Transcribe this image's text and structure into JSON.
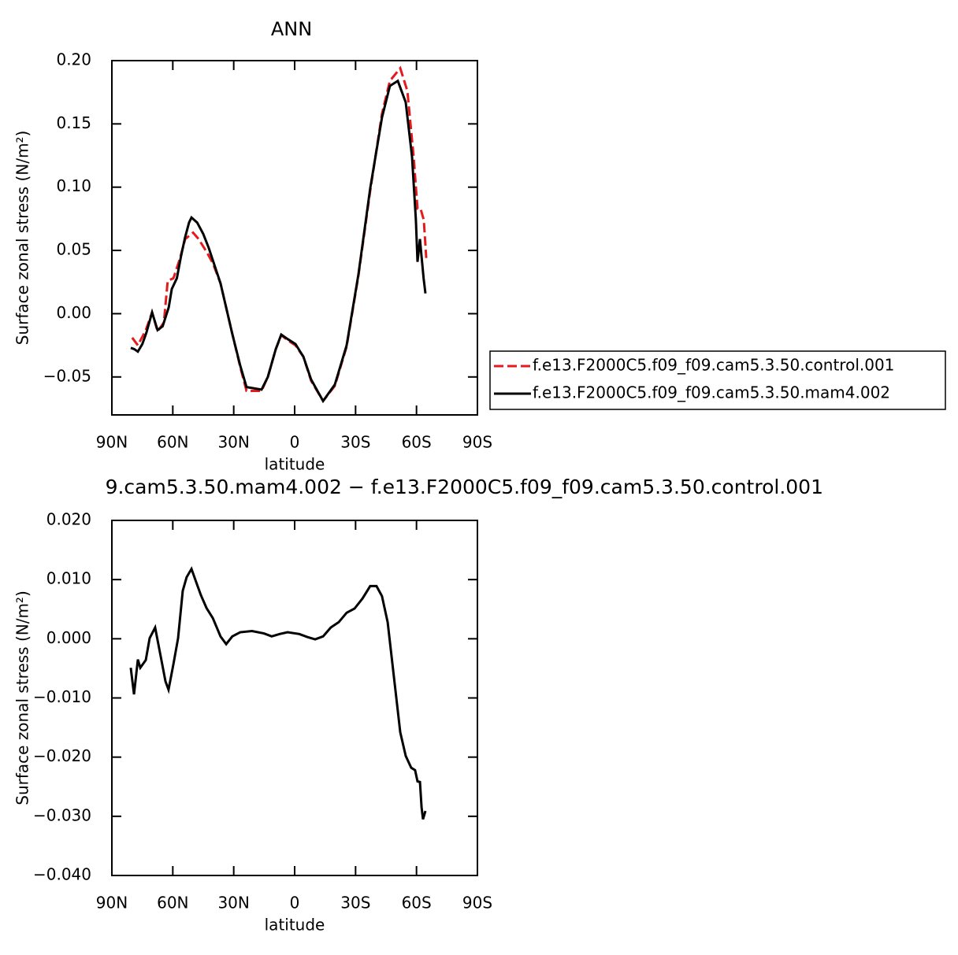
{
  "chart_data": [
    {
      "type": "line",
      "title": "ANN",
      "xlabel": "latitude",
      "ylabel": "Surface zonal stress (N/m²)",
      "xlim": [
        90,
        -90
      ],
      "xticks": [
        {
          "value": 90,
          "label": "90N"
        },
        {
          "value": 60,
          "label": "60N"
        },
        {
          "value": 30,
          "label": "30N"
        },
        0,
        {
          "value": -30,
          "label": "30S"
        },
        {
          "value": -60,
          "label": "60S"
        },
        {
          "value": -90,
          "label": "90S"
        }
      ],
      "ylim": [
        -0.08,
        0.2
      ],
      "yticks": [
        {
          "value": -0.05,
          "label": "−0.05"
        },
        {
          "value": 0,
          "label": "0.00"
        },
        {
          "value": 0.05,
          "label": "0.05"
        },
        {
          "value": 0.1,
          "label": "0.10"
        },
        {
          "value": 0.15,
          "label": "0.15"
        },
        {
          "value": 0.2,
          "label": "0.20"
        }
      ],
      "legend": "right",
      "series": [
        {
          "name": "f.e13.F2000C5.f09_f09.cam5.3.50.control.001",
          "color": "#e41a1c",
          "dashed": true,
          "x": [
            80,
            77.2,
            73.3,
            70.2,
            67.5,
            64.4,
            62.5,
            59.7,
            56.6,
            53.9,
            50,
            47.3,
            43.4,
            40.3,
            36.5,
            30.7,
            26.8,
            23.7,
            16.3,
            13.2,
            9.3,
            6.6,
            3.5,
            -0.4,
            -4.3,
            -8.1,
            -14,
            -19.8,
            -25.6,
            -31.4,
            -37.2,
            -43,
            -46.9,
            -52,
            -55.5,
            -58.6,
            -60.5,
            -62,
            -63.6,
            -64.8
          ],
          "values": [
            -0.019,
            -0.025,
            -0.013,
            0.001,
            -0.014,
            -0.007,
            0.026,
            0.028,
            0.043,
            0.059,
            0.064,
            0.059,
            0.049,
            0.04,
            0.024,
            -0.016,
            -0.042,
            -0.061,
            -0.061,
            -0.05,
            -0.028,
            -0.017,
            -0.021,
            -0.025,
            -0.034,
            -0.053,
            -0.069,
            -0.057,
            -0.026,
            0.03,
            0.097,
            0.158,
            0.184,
            0.194,
            0.176,
            0.124,
            0.083,
            0.083,
            0.074,
            0.044
          ]
        },
        {
          "name": "f.e13.F2000C5.f09_f09.cam5.3.50.mam4.002",
          "color": "#000000",
          "dashed": false,
          "x": [
            80.7,
            79,
            77.2,
            75,
            73,
            70.2,
            67.5,
            65,
            62,
            60.5,
            58,
            56,
            54,
            52,
            50.8,
            48,
            45,
            42.3,
            36.5,
            30.7,
            26.8,
            23.7,
            16.3,
            13.2,
            9.3,
            6.6,
            3.5,
            -0.4,
            -4.3,
            -8.1,
            -14,
            -19.8,
            -25.6,
            -31.4,
            -37.2,
            -43,
            -46.9,
            -50.8,
            -54.7,
            -57.8,
            -59.7,
            -60.5,
            -61.7,
            -62.5,
            -63.5,
            -64.4
          ],
          "values": [
            -0.027,
            -0.028,
            -0.03,
            -0.024,
            -0.015,
            0.001,
            -0.013,
            -0.01,
            0.005,
            0.0195,
            0.028,
            0.045,
            0.06,
            0.072,
            0.076,
            0.072,
            0.063,
            0.052,
            0.024,
            -0.016,
            -0.041,
            -0.058,
            -0.06,
            -0.05,
            -0.028,
            -0.0165,
            -0.02,
            -0.024,
            -0.034,
            -0.052,
            -0.069,
            -0.056,
            -0.025,
            0.031,
            0.099,
            0.155,
            0.18,
            0.184,
            0.167,
            0.124,
            0.074,
            0.041,
            0.059,
            0.045,
            0.028,
            0.016
          ]
        }
      ]
    },
    {
      "type": "line",
      "title": "9.cam5.3.50.mam4.002 − f.e13.F2000C5.f09_f09.cam5.3.50.control.001",
      "xlabel": "latitude",
      "ylabel": "Surface zonal stress (N/m²)",
      "xlim": [
        90,
        -90
      ],
      "xticks": [
        {
          "value": 90,
          "label": "90N"
        },
        {
          "value": 60,
          "label": "60N"
        },
        {
          "value": 30,
          "label": "30N"
        },
        0,
        {
          "value": -30,
          "label": "30S"
        },
        {
          "value": -60,
          "label": "60S"
        },
        {
          "value": -90,
          "label": "90S"
        }
      ],
      "ylim": [
        -0.04,
        0.02
      ],
      "yticks": [
        {
          "value": -0.04,
          "label": "−0.040"
        },
        {
          "value": -0.03,
          "label": "−0.030"
        },
        {
          "value": -0.02,
          "label": "−0.020"
        },
        {
          "value": -0.01,
          "label": "−0.010"
        },
        {
          "value": 0,
          "label": "0.000"
        },
        {
          "value": 0.01,
          "label": "0.010"
        },
        {
          "value": 0.02,
          "label": "0.020"
        }
      ],
      "series": [
        {
          "color": "#000000",
          "dashed": false,
          "x": [
            80.7,
            79.1,
            77.2,
            76,
            73.3,
            71.4,
            68.7,
            66,
            63.6,
            62.1,
            59.7,
            57.4,
            55.1,
            53.2,
            50.8,
            48.1,
            46.2,
            43.4,
            40.3,
            36.5,
            33.7,
            30.7,
            26.8,
            21,
            15.1,
            11.3,
            7.4,
            3.5,
            -2.3,
            -6.2,
            -10.1,
            -14,
            -17.8,
            -21.7,
            -25.6,
            -29.5,
            -33.4,
            -37.2,
            -40.3,
            -43,
            -45.8,
            -48.9,
            -52,
            -54.7,
            -57.4,
            -59.3,
            -60.5,
            -61.7,
            -62.5,
            -63.2,
            -64.4
          ],
          "values": [
            -0.0049,
            -0.0094,
            -0.0035,
            -0.0049,
            -0.0036,
            0.0001,
            0.0019,
            -0.0029,
            -0.0072,
            -0.0086,
            -0.0043,
            0.0001,
            0.0081,
            0.0104,
            0.0118,
            0.0092,
            0.0074,
            0.0052,
            0.0035,
            0.0004,
            -0.0009,
            0.0004,
            0.0011,
            0.0013,
            0.0009,
            0.0004,
            0.0008,
            0.0011,
            0.0008,
            0.0003,
            -0.0001,
            0.0004,
            0.0019,
            0.0028,
            0.0044,
            0.0051,
            0.0068,
            0.0089,
            0.0089,
            0.0072,
            0.0028,
            -0.0065,
            -0.0158,
            -0.0198,
            -0.0218,
            -0.0222,
            -0.0241,
            -0.0242,
            -0.0285,
            -0.0305,
            -0.0291
          ]
        }
      ]
    }
  ]
}
